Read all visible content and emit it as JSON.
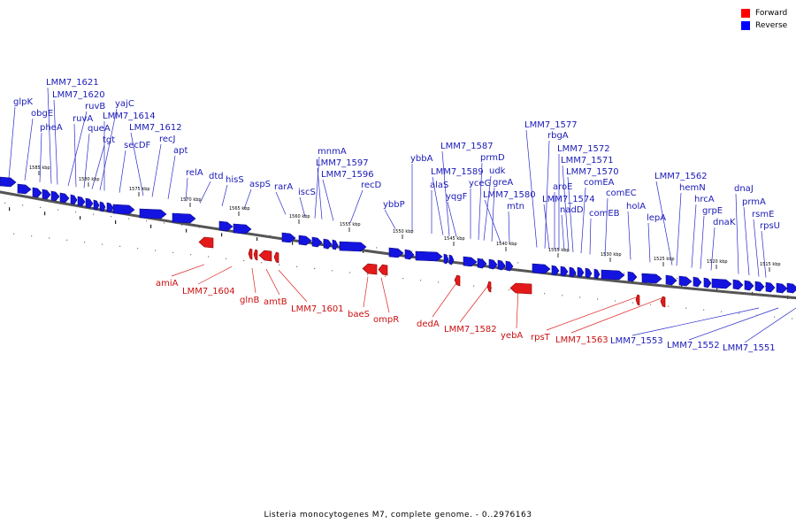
{
  "legend": {
    "items": [
      {
        "label": "Forward",
        "color": "#ff0000"
      },
      {
        "label": "Reverse",
        "color": "#0000ff"
      }
    ]
  },
  "caption": "Listeria monocytogenes M7, complete genome. - 0..2976163",
  "colors": {
    "forward": "#e41a1a",
    "reverse": "#1414e0",
    "backbone": "#555555"
  },
  "ticks": [
    {
      "label": "1585 kbp",
      "kbp": 1585
    },
    {
      "label": "1580 kbp",
      "kbp": 1580
    },
    {
      "label": "1575 kbp",
      "kbp": 1575
    },
    {
      "label": "1570 kbp",
      "kbp": 1570
    },
    {
      "label": "1565 kbp",
      "kbp": 1565
    },
    {
      "label": "1560 kbp",
      "kbp": 1560
    },
    {
      "label": "1555 kbp",
      "kbp": 1555
    },
    {
      "label": "1550 kbp",
      "kbp": 1550
    },
    {
      "label": "1545 kbp",
      "kbp": 1545
    },
    {
      "label": "1540 kbp",
      "kbp": 1540
    },
    {
      "label": "1535 kbp",
      "kbp": 1535
    },
    {
      "label": "1530 kbp",
      "kbp": 1530
    },
    {
      "label": "1525 kbp",
      "kbp": 1525
    },
    {
      "label": "1520 kbp",
      "kbp": 1520
    },
    {
      "label": "1515 kbp",
      "kbp": 1515
    }
  ],
  "reverse_genes": [
    "glpK",
    "obgE",
    "pheA",
    "LMM7_1621",
    "LMM7_1620",
    "ruvB",
    "ruvA",
    "queA",
    "tgt",
    "yajC",
    "LMM7_1614",
    "secDF",
    "LMM7_1612",
    "recJ",
    "apt",
    "relA",
    "dtd",
    "hisS",
    "aspS",
    "rarA",
    "iscS",
    "mnmA",
    "LMM7_1597",
    "LMM7_1596",
    "recD",
    "ybbP",
    "ybbA",
    "alaS",
    "LMM7_1589",
    "LMM7_1587",
    "yqgF",
    "yceG",
    "prmD",
    "udk",
    "greA",
    "LMM7_1580",
    "mtn",
    "LMM7_1577",
    "rbgA",
    "LMM7_1574",
    "aroE",
    "LMM7_1572",
    "nadD",
    "LMM7_1571",
    "LMM7_1570",
    "comEA",
    "comEB",
    "comEC",
    "holA",
    "lepA",
    "LMM7_1562",
    "hemN",
    "hrcA",
    "grpE",
    "dnaK",
    "dnaJ",
    "prmA",
    "rsmE",
    "rpsU",
    "LMM7_1553",
    "LMM7_1552",
    "LMM7_1551"
  ],
  "forward_genes": [
    "amiA",
    "LMM7_1604",
    "glnB",
    "amtB",
    "LMM7_1601",
    "baeS",
    "ompR",
    "dedA",
    "LMM7_1582",
    "yebA",
    "rpsT",
    "LMM7_1563"
  ]
}
